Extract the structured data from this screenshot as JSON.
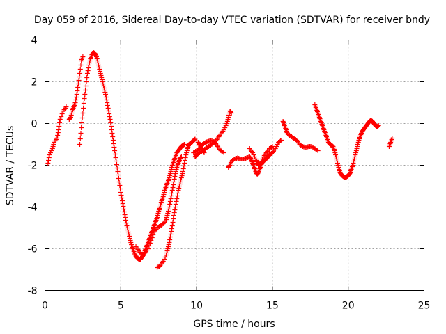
{
  "chart_data": {
    "type": "scatter",
    "title": "Day 059 of 2016, Sidereal Day-to-day VTEC variation (SDTVAR) for receiver bndy",
    "xlabel": "GPS time / hours",
    "ylabel": "SDTVAR / TECUs",
    "xlim": [
      0,
      25
    ],
    "ylim": [
      -8,
      4
    ],
    "xticks": [
      0,
      5,
      10,
      15,
      20,
      25
    ],
    "yticks": [
      -8,
      -6,
      -4,
      -2,
      0,
      2,
      4
    ],
    "grid": true,
    "marker": "plus",
    "color": "#ff0000",
    "series": [
      {
        "name": "",
        "segments": [
          [
            [
              0.2,
              -1.9
            ],
            [
              0.3,
              -1.5
            ],
            [
              0.5,
              -1.2
            ],
            [
              0.6,
              -0.9
            ],
            [
              0.8,
              -0.7
            ],
            [
              0.9,
              -0.3
            ],
            [
              1.0,
              0.2
            ],
            [
              1.2,
              0.6
            ],
            [
              1.4,
              0.8
            ]
          ],
          [
            [
              1.6,
              0.2
            ],
            [
              1.7,
              0.3
            ],
            [
              1.8,
              0.6
            ],
            [
              1.9,
              0.8
            ],
            [
              2.0,
              1.0
            ],
            [
              2.1,
              1.4
            ],
            [
              2.2,
              1.9
            ],
            [
              2.3,
              2.4
            ],
            [
              2.4,
              3.0
            ],
            [
              2.5,
              3.2
            ]
          ],
          [
            [
              2.3,
              -1.0
            ],
            [
              2.4,
              -0.2
            ],
            [
              2.5,
              0.5
            ],
            [
              2.6,
              1.2
            ],
            [
              2.7,
              1.8
            ],
            [
              2.8,
              2.4
            ],
            [
              2.9,
              2.8
            ],
            [
              3.0,
              3.1
            ],
            [
              3.1,
              3.3
            ],
            [
              3.2,
              3.4
            ],
            [
              3.3,
              3.35
            ],
            [
              3.4,
              3.2
            ],
            [
              3.5,
              2.9
            ],
            [
              3.6,
              2.6
            ],
            [
              3.7,
              2.3
            ],
            [
              3.8,
              2.0
            ],
            [
              3.9,
              1.7
            ],
            [
              4.0,
              1.4
            ],
            [
              4.1,
              1.0
            ],
            [
              4.2,
              0.6
            ],
            [
              4.3,
              0.2
            ],
            [
              4.4,
              -0.3
            ],
            [
              4.5,
              -0.8
            ],
            [
              4.6,
              -1.3
            ],
            [
              4.7,
              -1.8
            ],
            [
              4.8,
              -2.3
            ],
            [
              4.9,
              -2.8
            ],
            [
              5.0,
              -3.3
            ],
            [
              5.1,
              -3.7
            ],
            [
              5.2,
              -4.1
            ],
            [
              5.3,
              -4.5
            ],
            [
              5.4,
              -4.9
            ],
            [
              5.5,
              -5.2
            ],
            [
              5.6,
              -5.5
            ],
            [
              5.7,
              -5.8
            ],
            [
              5.8,
              -6.0
            ],
            [
              5.9,
              -6.2
            ],
            [
              6.0,
              -6.35
            ],
            [
              6.1,
              -6.45
            ],
            [
              6.2,
              -6.5
            ],
            [
              6.3,
              -6.5
            ],
            [
              6.4,
              -6.4
            ],
            [
              6.5,
              -6.3
            ],
            [
              6.6,
              -6.1
            ],
            [
              6.7,
              -5.9
            ],
            [
              6.8,
              -5.7
            ],
            [
              6.9,
              -5.5
            ],
            [
              7.0,
              -5.3
            ],
            [
              7.1,
              -5.1
            ],
            [
              7.2,
              -4.9
            ],
            [
              7.3,
              -4.7
            ],
            [
              7.4,
              -4.5
            ],
            [
              7.5,
              -4.2
            ],
            [
              7.6,
              -4.0
            ],
            [
              7.7,
              -3.7
            ],
            [
              7.8,
              -3.5
            ],
            [
              7.9,
              -3.2
            ],
            [
              8.0,
              -3.0
            ],
            [
              8.1,
              -2.8
            ],
            [
              8.2,
              -2.6
            ],
            [
              8.3,
              -2.3
            ],
            [
              8.4,
              -2.0
            ],
            [
              8.5,
              -1.8
            ],
            [
              8.6,
              -1.6
            ],
            [
              8.7,
              -1.4
            ],
            [
              8.8,
              -1.3
            ],
            [
              8.9,
              -1.2
            ],
            [
              9.0,
              -1.1
            ],
            [
              9.1,
              -1.05
            ],
            [
              9.2,
              -1.0
            ]
          ],
          [
            [
              6.0,
              -5.9
            ],
            [
              6.2,
              -6.1
            ],
            [
              6.4,
              -6.3
            ],
            [
              6.6,
              -6.2
            ],
            [
              6.8,
              -6.0
            ],
            [
              7.0,
              -5.6
            ],
            [
              7.2,
              -5.2
            ],
            [
              7.4,
              -5.0
            ],
            [
              7.6,
              -4.9
            ],
            [
              7.8,
              -4.8
            ],
            [
              8.0,
              -4.6
            ],
            [
              8.1,
              -4.3
            ],
            [
              8.2,
              -4.0
            ],
            [
              8.3,
              -3.6
            ],
            [
              8.4,
              -3.2
            ],
            [
              8.5,
              -2.8
            ],
            [
              8.6,
              -2.4
            ],
            [
              8.7,
              -2.1
            ],
            [
              8.8,
              -1.9
            ],
            [
              8.9,
              -1.7
            ],
            [
              9.0,
              -1.6
            ]
          ],
          [
            [
              7.4,
              -6.9
            ],
            [
              7.6,
              -6.8
            ],
            [
              7.8,
              -6.6
            ],
            [
              8.0,
              -6.3
            ],
            [
              8.1,
              -6.0
            ],
            [
              8.2,
              -5.7
            ],
            [
              8.3,
              -5.3
            ],
            [
              8.4,
              -4.9
            ],
            [
              8.5,
              -4.4
            ],
            [
              8.6,
              -4.0
            ],
            [
              8.7,
              -3.6
            ],
            [
              8.8,
              -3.2
            ],
            [
              8.9,
              -2.9
            ],
            [
              9.0,
              -2.6
            ],
            [
              9.1,
              -2.3
            ],
            [
              9.2,
              -1.9
            ],
            [
              9.3,
              -1.5
            ],
            [
              9.4,
              -1.2
            ],
            [
              9.5,
              -1.0
            ],
            [
              9.6,
              -0.95
            ],
            [
              9.7,
              -0.9
            ],
            [
              9.8,
              -0.8
            ],
            [
              9.9,
              -0.75
            ]
          ],
          [
            [
              9.8,
              -1.4
            ],
            [
              10.0,
              -1.3
            ],
            [
              10.2,
              -1.2
            ],
            [
              10.4,
              -1.0
            ],
            [
              10.6,
              -0.9
            ],
            [
              10.8,
              -0.85
            ],
            [
              11.0,
              -0.8
            ],
            [
              11.2,
              -0.9
            ],
            [
              11.4,
              -1.1
            ],
            [
              11.6,
              -1.3
            ],
            [
              11.8,
              -1.4
            ]
          ],
          [
            [
              9.9,
              -1.6
            ],
            [
              10.0,
              -1.5
            ],
            [
              10.2,
              -1.4
            ],
            [
              10.4,
              -1.3
            ],
            [
              10.6,
              -1.2
            ],
            [
              10.8,
              -1.1
            ],
            [
              11.0,
              -1.0
            ],
            [
              11.2,
              -0.9
            ],
            [
              11.4,
              -0.7
            ],
            [
              11.6,
              -0.5
            ],
            [
              11.8,
              -0.3
            ],
            [
              12.0,
              0.0
            ],
            [
              12.1,
              0.3
            ],
            [
              12.2,
              0.6
            ],
            [
              12.3,
              0.5
            ]
          ],
          [
            [
              10.1,
              -0.9
            ],
            [
              10.2,
              -1.0
            ],
            [
              10.3,
              -1.15
            ],
            [
              10.4,
              -1.3
            ],
            [
              10.5,
              -1.4
            ]
          ],
          [
            [
              12.1,
              -2.1
            ],
            [
              12.2,
              -2.0
            ],
            [
              12.3,
              -1.8
            ],
            [
              12.5,
              -1.7
            ],
            [
              12.7,
              -1.65
            ],
            [
              12.9,
              -1.7
            ],
            [
              13.1,
              -1.7
            ],
            [
              13.3,
              -1.65
            ],
            [
              13.5,
              -1.6
            ],
            [
              13.6,
              -1.7
            ],
            [
              13.7,
              -1.9
            ],
            [
              13.8,
              -2.1
            ],
            [
              13.9,
              -2.3
            ],
            [
              14.0,
              -2.45
            ],
            [
              14.1,
              -2.3
            ],
            [
              14.2,
              -2.1
            ],
            [
              14.3,
              -1.9
            ],
            [
              14.4,
              -1.8
            ],
            [
              14.5,
              -1.75
            ],
            [
              14.6,
              -1.7
            ],
            [
              14.7,
              -1.6
            ],
            [
              14.8,
              -1.5
            ],
            [
              15.0,
              -1.4
            ],
            [
              15.2,
              -1.2
            ],
            [
              15.4,
              -0.9
            ],
            [
              15.6,
              -0.8
            ]
          ],
          [
            [
              13.5,
              -1.2
            ],
            [
              13.7,
              -1.4
            ],
            [
              13.9,
              -1.7
            ],
            [
              14.0,
              -1.9
            ],
            [
              14.1,
              -2.0
            ],
            [
              14.2,
              -1.9
            ],
            [
              14.4,
              -1.6
            ],
            [
              14.6,
              -1.4
            ],
            [
              14.8,
              -1.2
            ],
            [
              15.0,
              -1.1
            ]
          ],
          [
            [
              15.7,
              0.1
            ],
            [
              15.8,
              -0.1
            ],
            [
              15.9,
              -0.3
            ],
            [
              16.0,
              -0.5
            ],
            [
              16.2,
              -0.6
            ],
            [
              16.4,
              -0.7
            ],
            [
              16.6,
              -0.8
            ],
            [
              16.8,
              -1.0
            ],
            [
              17.0,
              -1.1
            ],
            [
              17.2,
              -1.15
            ],
            [
              17.4,
              -1.1
            ],
            [
              17.6,
              -1.1
            ],
            [
              17.8,
              -1.2
            ],
            [
              18.0,
              -1.3
            ]
          ],
          [
            [
              17.8,
              0.9
            ],
            [
              17.9,
              0.7
            ],
            [
              18.0,
              0.5
            ],
            [
              18.1,
              0.3
            ],
            [
              18.2,
              0.1
            ],
            [
              18.3,
              -0.1
            ],
            [
              18.4,
              -0.3
            ],
            [
              18.5,
              -0.5
            ],
            [
              18.6,
              -0.7
            ],
            [
              18.7,
              -0.9
            ],
            [
              18.8,
              -1.0
            ],
            [
              18.9,
              -1.05
            ],
            [
              19.0,
              -1.1
            ],
            [
              19.1,
              -1.3
            ],
            [
              19.2,
              -1.6
            ],
            [
              19.3,
              -1.9
            ],
            [
              19.4,
              -2.2
            ],
            [
              19.5,
              -2.4
            ],
            [
              19.6,
              -2.5
            ],
            [
              19.7,
              -2.55
            ],
            [
              19.8,
              -2.6
            ],
            [
              19.9,
              -2.55
            ],
            [
              20.0,
              -2.5
            ],
            [
              20.1,
              -2.4
            ],
            [
              20.2,
              -2.2
            ],
            [
              20.3,
              -2.0
            ],
            [
              20.4,
              -1.7
            ],
            [
              20.5,
              -1.4
            ],
            [
              20.6,
              -1.1
            ],
            [
              20.7,
              -0.8
            ],
            [
              20.8,
              -0.6
            ],
            [
              20.9,
              -0.4
            ],
            [
              21.0,
              -0.3
            ],
            [
              21.1,
              -0.2
            ],
            [
              21.2,
              -0.1
            ],
            [
              21.3,
              0.0
            ],
            [
              21.4,
              0.1
            ],
            [
              21.5,
              0.15
            ],
            [
              21.6,
              0.1
            ],
            [
              21.7,
              0.0
            ],
            [
              21.8,
              -0.1
            ],
            [
              21.9,
              -0.15
            ],
            [
              22.0,
              -0.1
            ]
          ],
          [
            [
              22.7,
              -1.1
            ],
            [
              22.8,
              -0.9
            ],
            [
              22.9,
              -0.7
            ]
          ]
        ]
      }
    ]
  }
}
